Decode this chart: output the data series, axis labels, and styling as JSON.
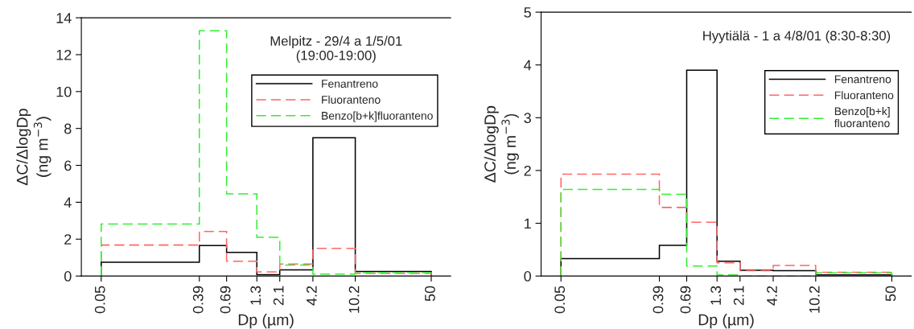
{
  "chart_data": [
    {
      "type": "histogram",
      "title": "Melpitz - 29/4 a 1/5/01\n(19:00-19:00)",
      "xlabel": "Dp (µm)",
      "ylabel": "ΔC/ΔlogDp\n(ng m$^{−3}$)",
      "log": "x",
      "bins": [
        0.05,
        0.39,
        0.69,
        1.3,
        2.1,
        4.2,
        10.2,
        50
      ],
      "xlim": [
        0.033,
        75
      ],
      "xticks": [
        0.05,
        0.39,
        0.69,
        1.3,
        2.1,
        4.2,
        10.2,
        50
      ],
      "ylim": [
        0,
        14
      ],
      "yticks": [
        0,
        2,
        4,
        6,
        8,
        10,
        12,
        14
      ],
      "grid": false,
      "legend": "top right",
      "series": [
        {
          "name": "Fenantreno",
          "color": "#000000",
          "line_style": "solid",
          "values": [
            0.75,
            1.65,
            1.28,
            0.07,
            0.33,
            7.5,
            0.25
          ]
        },
        {
          "name": "Fluoranteno",
          "color": "#ff6666",
          "line_style": "dashed",
          "values": [
            1.68,
            2.42,
            0.8,
            0.22,
            0.65,
            1.5,
            0.15
          ]
        },
        {
          "name": "Benzo[b+k]fluoranteno",
          "color": "#33ee33",
          "line_style": "dashed",
          "values": [
            2.82,
            13.3,
            4.45,
            2.1,
            0.6,
            0.1,
            0.18
          ]
        }
      ]
    },
    {
      "type": "histogram",
      "title": "Hyytiälä - 1 a 4/8/01 (8:30-8:30)",
      "xlabel": "Dp (µm)",
      "ylabel": "ΔC/ΔlogDp\n(ng m$^{−3}$)",
      "log": "x",
      "bins": [
        0.05,
        0.39,
        0.69,
        1.3,
        2.1,
        4.2,
        10.2,
        50
      ],
      "xlim": [
        0.033,
        75
      ],
      "xticks": [
        0.05,
        0.39,
        0.69,
        1.3,
        2.1,
        4.2,
        10.2,
        50
      ],
      "ylim": [
        0,
        5
      ],
      "yticks": [
        0,
        1,
        2,
        3,
        4,
        5
      ],
      "grid": false,
      "legend": "top right",
      "series": [
        {
          "name": "Fenantreno",
          "color": "#000000",
          "line_style": "solid",
          "values": [
            0.33,
            0.58,
            3.9,
            0.28,
            0.11,
            0.1,
            0.02
          ]
        },
        {
          "name": "Fluoranteno",
          "color": "#ff6666",
          "line_style": "dashed",
          "values": [
            1.93,
            1.3,
            1.02,
            0.25,
            0.1,
            0.2,
            0.07
          ]
        },
        {
          "name": "Benzo[b+k]\nfluoranteno",
          "color": "#33ee33",
          "line_style": "dashed",
          "values": [
            1.64,
            1.55,
            0.19,
            0.02,
            0.0,
            0.0,
            0.06
          ]
        }
      ]
    }
  ]
}
